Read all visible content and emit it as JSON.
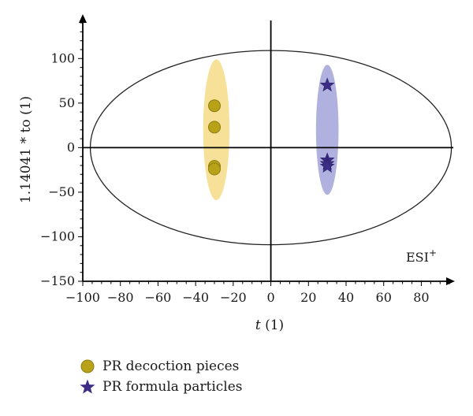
{
  "chart_data": {
    "type": "scatter",
    "xlabel": "t (1)",
    "xlabel_var": "t",
    "xlabel_rest": " (1)",
    "ylabel": "1.14041 * to (1)",
    "annotation": "ESI",
    "annotation_sup": "+",
    "xlim": [
      -100,
      97
    ],
    "ylim": [
      -150,
      148
    ],
    "x_ticks": [
      -100,
      -80,
      -60,
      -40,
      -20,
      0,
      20,
      40,
      60,
      80
    ],
    "y_ticks": [
      -150,
      -100,
      -50,
      0,
      50,
      100
    ],
    "ellipse": {
      "center": [
        0,
        0
      ],
      "rx": 96,
      "ry": 109
    },
    "series": [
      {
        "name": "PR decoction pieces",
        "marker": "circle",
        "color": "#b8a318",
        "edge": "#8e7d10",
        "region_color": "#f6dd8c",
        "region": {
          "cx": -29,
          "cy": 20,
          "rx": 7,
          "ry": 79
        },
        "points": [
          {
            "x": -30,
            "y": 47
          },
          {
            "x": -30,
            "y": 23
          },
          {
            "x": -30,
            "y": -21
          },
          {
            "x": -30,
            "y": -24
          }
        ]
      },
      {
        "name": "PR formula particles",
        "marker": "star",
        "color": "#3d2d86",
        "edge": "#2b1f66",
        "region_color": "#a7a9dc",
        "region": {
          "cx": 30,
          "cy": 20,
          "rx": 6,
          "ry": 73
        },
        "points": [
          {
            "x": 30,
            "y": 70
          },
          {
            "x": 30,
            "y": -14
          },
          {
            "x": 30,
            "y": -18
          },
          {
            "x": 30,
            "y": -21
          }
        ]
      }
    ],
    "grid": false,
    "legend_position": "bottom-left"
  }
}
